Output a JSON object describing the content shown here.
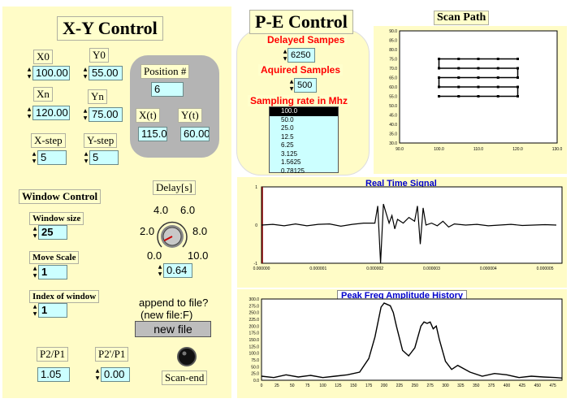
{
  "xy": {
    "title": "X-Y Control",
    "x0": {
      "label": "X0",
      "value": "100.00"
    },
    "y0": {
      "label": "Y0",
      "value": "55.00"
    },
    "xn": {
      "label": "Xn",
      "value": "120.00"
    },
    "yn": {
      "label": "Yn",
      "value": "75.00"
    },
    "xstep": {
      "label": "X-step",
      "value": "5"
    },
    "ystep": {
      "label": "Y-step",
      "value": "5"
    },
    "position": {
      "label": "Position #",
      "value": "6"
    },
    "xt": {
      "label": "X(t)",
      "value": "115.0"
    },
    "yt": {
      "label": "Y(t)",
      "value": "60.00"
    }
  },
  "window": {
    "title": "Window Control",
    "size": {
      "label": "Window size",
      "value": "25"
    },
    "move": {
      "label": "Move Scale",
      "value": "1"
    },
    "index": {
      "label": "Index of window",
      "value": "1"
    }
  },
  "delay": {
    "label": "Delay[s]",
    "ticks": [
      "0.0",
      "2.0",
      "4.0",
      "6.0",
      "8.0",
      "10.0"
    ],
    "value": "0.64",
    "level": 0.64
  },
  "append": {
    "question": "append to file?",
    "hint": "(new file:F)",
    "button": "new file"
  },
  "p2p1": {
    "label": "P2/P1",
    "value": "1.05"
  },
  "p2pp1": {
    "label": "P2'/P1",
    "value": "0.00"
  },
  "scanend": {
    "label": "Scan-end"
  },
  "pe": {
    "title": "P-E Control",
    "delayed": {
      "label": "Delayed Sampes",
      "value": "6250"
    },
    "acquired": {
      "label": "Aquired Samples",
      "value": "500"
    },
    "rate": {
      "label": "Sampling rate in Mhz",
      "options": [
        "100.0",
        "50.0",
        "25.0",
        "12.5",
        "6.25",
        "3.125",
        "1.5625",
        "0.78125"
      ],
      "selected": "100.0"
    }
  },
  "scanpath": {
    "title": "Scan Path",
    "xticks": [
      "90.0",
      "100.0",
      "110.0",
      "120.0",
      "130.0"
    ],
    "yticks": [
      "30.0",
      "35.0",
      "40.0",
      "45.0",
      "50.0",
      "55.0",
      "60.0",
      "65.0",
      "70.0",
      "75.0",
      "80.0",
      "85.0",
      "90.0"
    ]
  },
  "realtime": {
    "title": "Real Time Signal",
    "yticks": [
      "1",
      "0",
      "-1"
    ],
    "xticks": [
      "0.000000",
      "0.000001",
      "0.000002",
      "0.000003",
      "0.000004",
      "0.000005"
    ]
  },
  "peak": {
    "title": "Peak Freq Amplitude History",
    "yticks": [
      "300.0",
      "275.0",
      "250.0",
      "225.0",
      "200.0",
      "175.0",
      "150.0",
      "125.0",
      "100.0",
      "75.0",
      "50.0",
      "25.0",
      "0.0"
    ],
    "xticks": [
      "0",
      "25",
      "50",
      "75",
      "100",
      "125",
      "150",
      "175",
      "200",
      "225",
      "250",
      "275",
      "300",
      "325",
      "350",
      "375",
      "400",
      "425",
      "450",
      "475"
    ]
  },
  "chart_data": [
    {
      "type": "line",
      "title": "Scan Path",
      "xlim": [
        90,
        130
      ],
      "ylim": [
        30,
        90
      ],
      "x": [
        100,
        105,
        110,
        115,
        120,
        120,
        115,
        110,
        105,
        100,
        100,
        105,
        110,
        115,
        120,
        120,
        115,
        110,
        105,
        100,
        100,
        105,
        110,
        115,
        120
      ],
      "y": [
        55,
        55,
        55,
        55,
        55,
        60,
        60,
        60,
        60,
        60,
        65,
        65,
        65,
        65,
        65,
        70,
        70,
        70,
        70,
        70,
        75,
        75,
        75,
        75,
        75
      ]
    },
    {
      "type": "line",
      "title": "Real Time Signal",
      "xlim": [
        0,
        5.3e-06
      ],
      "ylim": [
        -1,
        1
      ],
      "x": [
        0,
        2e-07,
        4e-07,
        6e-07,
        8e-07,
        1e-06,
        1.2e-06,
        1.4e-06,
        1.6e-06,
        1.8e-06,
        2e-06,
        2.05e-06,
        2.1e-06,
        2.15e-06,
        2.2e-06,
        2.25e-06,
        2.3e-06,
        2.35e-06,
        2.4e-06,
        2.5e-06,
        2.6e-06,
        2.7e-06,
        2.75e-06,
        2.8e-06,
        2.85e-06,
        2.9e-06,
        3e-06,
        3.1e-06,
        3.2e-06,
        3.3e-06,
        3.4e-06,
        3.6e-06,
        3.8e-06,
        4e-06,
        4.2e-06,
        4.4e-06,
        4.6e-06,
        4.8e-06,
        5e-06,
        5.2e-06
      ],
      "y": [
        0,
        0.02,
        -0.02,
        0.03,
        -0.02,
        0.02,
        0.03,
        -0.03,
        0.02,
        0.05,
        0.05,
        0.5,
        -1.0,
        0.55,
        0.3,
        0.05,
        0.25,
        -0.1,
        0.15,
        0.05,
        0.2,
        0.1,
        0.5,
        -0.5,
        0.45,
        0.0,
        0.05,
        -0.02,
        0.1,
        -0.05,
        0.03,
        0.0,
        0.02,
        -0.02,
        0.0,
        0.02,
        -0.01,
        0.0,
        0.01,
        0.0
      ]
    },
    {
      "type": "line",
      "title": "Peak Freq Amplitude History",
      "xlim": [
        0,
        490
      ],
      "ylim": [
        0,
        300
      ],
      "x": [
        0,
        20,
        40,
        60,
        80,
        100,
        120,
        140,
        160,
        175,
        185,
        195,
        200,
        205,
        210,
        215,
        220,
        230,
        240,
        250,
        260,
        265,
        270,
        275,
        280,
        285,
        290,
        300,
        310,
        320,
        340,
        360,
        380,
        400,
        420,
        440,
        460,
        480,
        490
      ],
      "y": [
        15,
        10,
        20,
        12,
        18,
        10,
        15,
        20,
        30,
        80,
        160,
        270,
        285,
        280,
        275,
        250,
        200,
        110,
        90,
        120,
        200,
        215,
        210,
        215,
        190,
        200,
        150,
        70,
        40,
        55,
        30,
        15,
        25,
        20,
        10,
        15,
        12,
        10,
        8
      ]
    }
  ]
}
